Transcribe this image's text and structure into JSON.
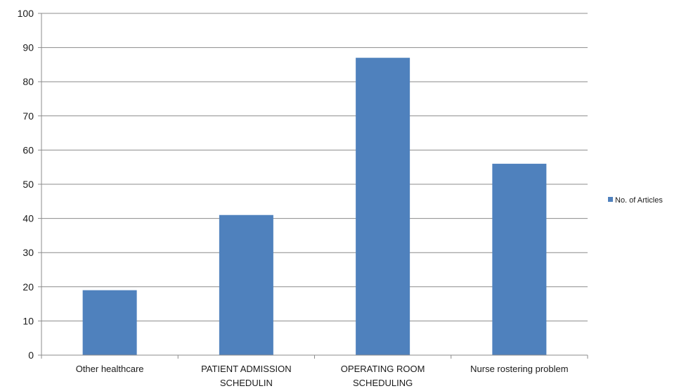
{
  "chart_data": {
    "type": "bar",
    "categories": [
      [
        "Other healthcare"
      ],
      [
        "PATIENT ADMISSION",
        "SCHEDULIN"
      ],
      [
        "OPERATING ROOM",
        "SCHEDULING"
      ],
      [
        "Nurse rostering problem"
      ]
    ],
    "series": [
      {
        "name": "No. of Articles",
        "values": [
          19,
          41,
          87,
          56
        ],
        "color": "#4f81bd"
      }
    ],
    "title": "",
    "xlabel": "",
    "ylabel": "",
    "ylim": [
      0,
      100
    ],
    "yticks": [
      0,
      10,
      20,
      30,
      40,
      50,
      60,
      70,
      80,
      90,
      100
    ],
    "grid": true,
    "legend_position": "right"
  },
  "colors": {
    "bar": "#4f81bd",
    "grid": "#8c8c8c",
    "axis": "#8c8c8c"
  }
}
